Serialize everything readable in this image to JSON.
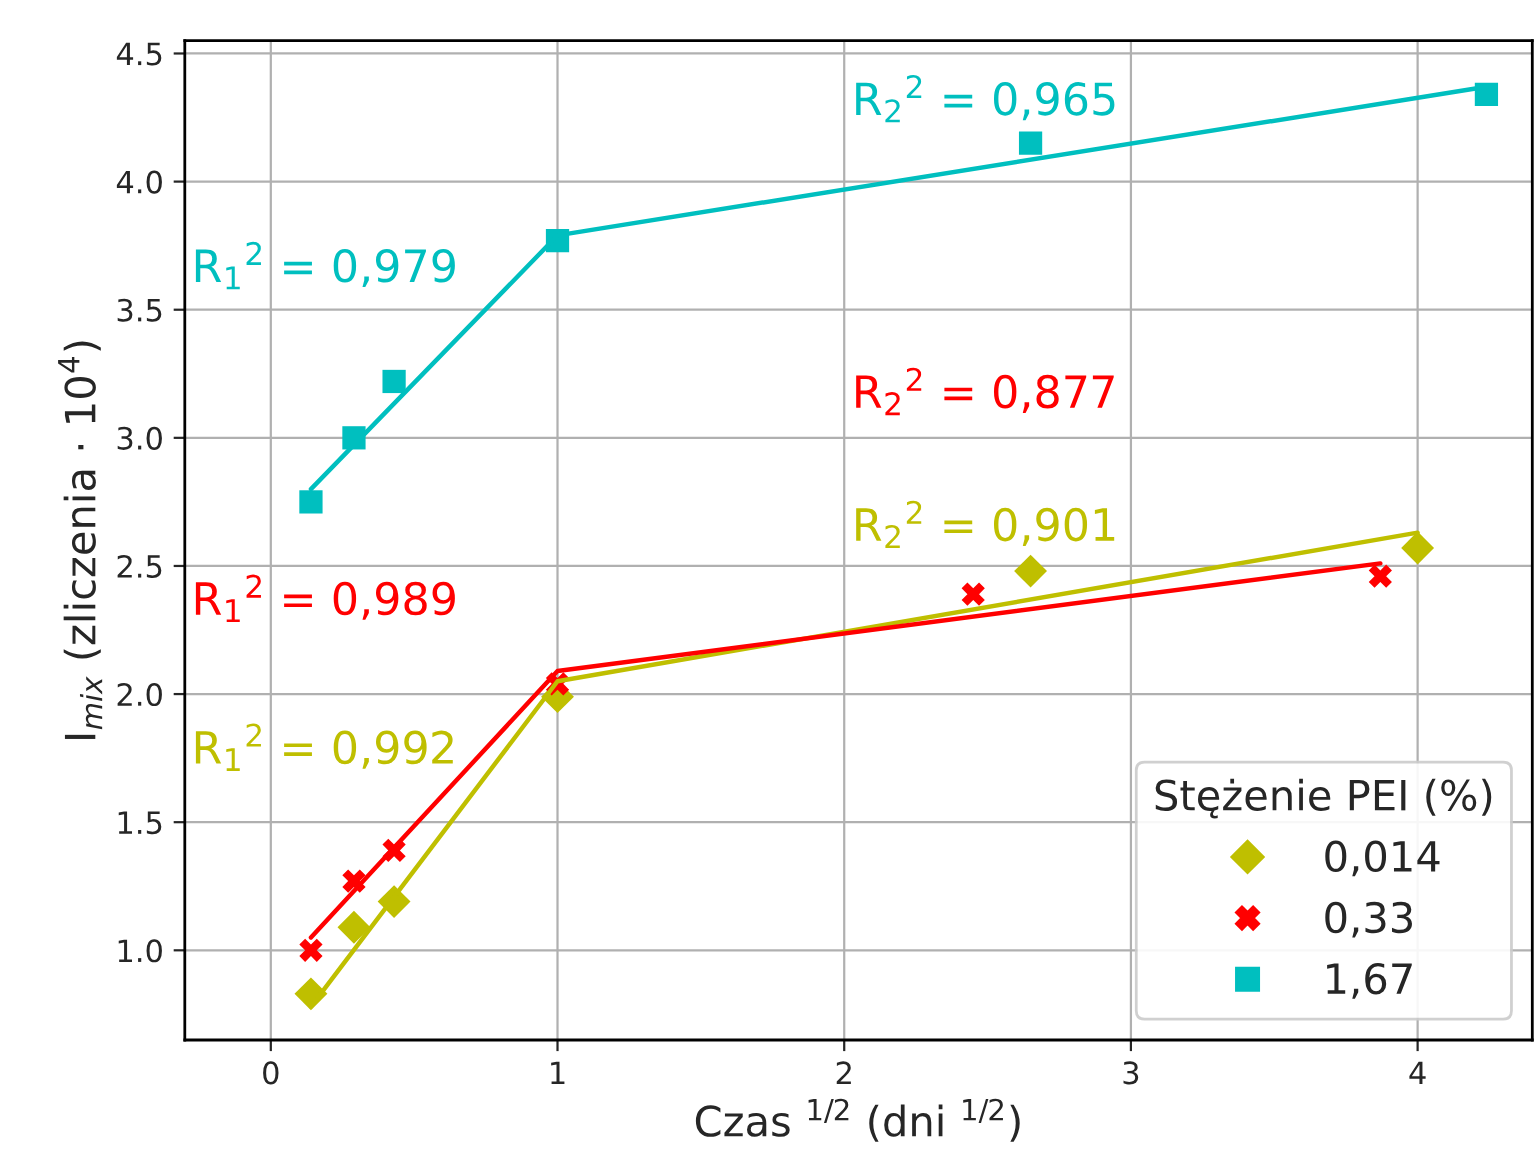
{
  "chart_data": {
    "type": "scatter",
    "xlabel": "Czas $^{1/2}$ (dni $^{1/2}$)",
    "ylabel": "I$_{mix}$ (zliczenia · 10$^{4}$)",
    "legend_title": "Stężenie PEI (%)",
    "legend": "bottom right",
    "grid": true,
    "xlim": [
      -0.3,
      4.4
    ],
    "ylim": [
      0.65,
      4.55
    ],
    "xticks": [
      0,
      1,
      2,
      3,
      4
    ],
    "yticks": [
      {
        "value": 1.0,
        "label": "1.0"
      },
      {
        "value": 1.5,
        "label": "1.5"
      },
      {
        "value": 2.0,
        "label": "2.0"
      },
      {
        "value": 2.5,
        "label": "2.5"
      },
      {
        "value": 3.0,
        "label": "3.0"
      },
      {
        "value": 3.5,
        "label": "3.5"
      },
      {
        "value": 4.0,
        "label": "4.0"
      },
      {
        "value": 4.5,
        "label": "4.5"
      }
    ],
    "series": [
      {
        "name": "0,014",
        "marker": "diamond",
        "color": "#bfbf00",
        "x": [
          0.14,
          0.29,
          0.43,
          1.0,
          2.65,
          4.0
        ],
        "values": [
          0.83,
          1.09,
          1.19,
          1.99,
          2.48,
          2.57
        ]
      },
      {
        "name": "0,33",
        "marker": "cross",
        "color": "#ff0000",
        "x": [
          0.14,
          0.29,
          0.43,
          1.0,
          2.45,
          3.87
        ],
        "values": [
          1.0,
          1.27,
          1.39,
          2.04,
          2.39,
          2.46
        ]
      },
      {
        "name": "1,67",
        "marker": "square",
        "color": "#00bfbf",
        "x": [
          0.14,
          0.29,
          0.43,
          1.0,
          2.65,
          4.24
        ],
        "values": [
          2.75,
          3.0,
          3.22,
          3.77,
          4.15,
          4.34
        ]
      },
      {
        "type": "line",
        "color": "#bfbf00",
        "x": [
          0.14,
          1.0,
          4.0
        ],
        "values": [
          0.78,
          2.05,
          2.63
        ]
      },
      {
        "type": "line",
        "color": "#ff0000",
        "x": [
          0.14,
          1.0,
          3.87
        ],
        "values": [
          1.05,
          2.09,
          2.51
        ]
      },
      {
        "type": "line",
        "color": "#00bfbf",
        "x": [
          0.14,
          1.0,
          4.24
        ],
        "values": [
          2.8,
          3.79,
          4.37
        ]
      }
    ],
    "annotations": [
      "R$_{1}$$^{2}$ = 0,992",
      "R$_{2}$$^{2}$ = 0,901",
      "R$_{1}$$^{2}$ = 0,989",
      "R$_{2}$$^{2}$ = 0,877",
      "R$_{1}$$^{2}$ = 0,979",
      "R$_{2}$$^{2}$ = 0,965"
    ]
  }
}
